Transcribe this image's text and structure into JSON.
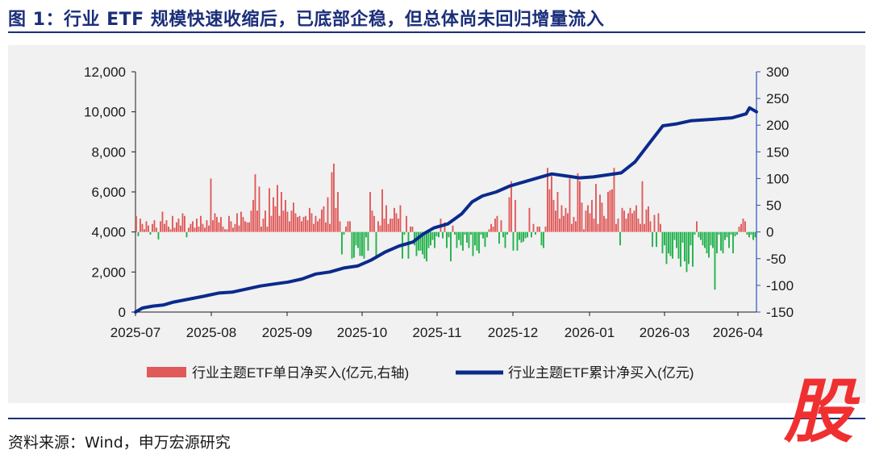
{
  "title": "图 1：行业 ETF 规模快速收缩后，已底部企稳，但总体尚未回归增量流入",
  "source": "资料来源：Wind，申万宏源研究",
  "stamp": "股",
  "colors": {
    "title": "#1b2f7a",
    "bar_pos": "#e05a5a",
    "bar_neg": "#22b24c",
    "line": "#0a2a8c",
    "axis_right": "#2a55b8"
  },
  "chart_data": {
    "type": "bar+line",
    "left_axis": {
      "ticks": [
        "0",
        "2,000",
        "4,000",
        "6,000",
        "8,000",
        "10,000",
        "12,000"
      ],
      "min": 0,
      "max": 12000
    },
    "right_axis": {
      "ticks": [
        "-150",
        "-100",
        "-50",
        "0",
        "50",
        "100",
        "150",
        "200",
        "250",
        "300"
      ],
      "min": -150,
      "max": 300
    },
    "x_labels": [
      "2025-07",
      "2025-08",
      "2025-09",
      "2025-10",
      "2025-11",
      "2025-12",
      "2026-01",
      "2026-03",
      "2026-04"
    ],
    "legend": {
      "bar": "行业主题ETF单日净买入(亿元,右轴)",
      "line": "行业主题ETF累计净买入(亿元)"
    },
    "series": [
      {
        "name": "行业主题ETF单日净买入(亿元,右轴)",
        "axis": "right",
        "values": [
          30,
          -8,
          25,
          15,
          5,
          20,
          12,
          -5,
          15,
          22,
          8,
          -14,
          20,
          38,
          15,
          22,
          10,
          5,
          30,
          8,
          18,
          25,
          12,
          35,
          30,
          -10,
          8,
          15,
          20,
          8,
          25,
          10,
          30,
          15,
          8,
          22,
          12,
          100,
          22,
          35,
          28,
          18,
          28,
          10,
          5,
          5,
          30,
          20,
          8,
          15,
          35,
          12,
          38,
          28,
          20,
          18,
          18,
          40,
          60,
          108,
          40,
          85,
          10,
          25,
          40,
          10,
          82,
          30,
          65,
          48,
          88,
          30,
          75,
          40,
          60,
          38,
          20,
          40,
          55,
          35,
          28,
          30,
          20,
          28,
          30,
          22,
          45,
          35,
          15,
          30,
          20,
          25,
          42,
          48,
          18,
          65,
          15,
          112,
          128,
          45,
          75,
          20,
          -42,
          -5,
          10,
          20,
          20,
          -50,
          -48,
          -25,
          -30,
          -45,
          -45,
          -50,
          -10,
          -35,
          75,
          40,
          30,
          -50,
          20,
          12,
          80,
          25,
          50,
          15,
          25,
          25,
          45,
          35,
          25,
          50,
          -50,
          -5,
          30,
          -50,
          10,
          10,
          -25,
          -45,
          -35,
          -35,
          -42,
          -50,
          -55,
          -30,
          -25,
          -15,
          -30,
          -8,
          -10,
          25,
          -12,
          18,
          -30,
          -10,
          -55,
          12,
          -5,
          -30,
          -15,
          -25,
          -35,
          -5,
          -20,
          -30,
          -5,
          -45,
          -25,
          -35,
          -40,
          -5,
          -12,
          -28,
          -10,
          5,
          15,
          10,
          25,
          30,
          -22,
          22,
          -10,
          -30,
          -5,
          65,
          95,
          -35,
          60,
          -35,
          -15,
          -20,
          -18,
          -12,
          -10,
          45,
          -10,
          15,
          -5,
          10,
          10,
          -25,
          -30,
          10,
          120,
          80,
          105,
          60,
          40,
          75,
          25,
          50,
          30,
          45,
          35,
          100,
          15,
          28,
          20,
          110,
          95,
          55,
          5,
          40,
          50,
          35,
          60,
          25,
          90,
          15,
          70,
          55,
          30,
          25,
          75,
          78,
          80,
          120,
          15,
          25,
          -25,
          45,
          40,
          25,
          35,
          45,
          35,
          40,
          50,
          25,
          15,
          95,
          15,
          42,
          48,
          20,
          -28,
          32,
          -28,
          35,
          15,
          -40,
          -25,
          -60,
          -40,
          -45,
          -50,
          -15,
          -30,
          -50,
          -65,
          -20,
          -55,
          -75,
          -60,
          -25,
          -65,
          -5,
          20,
          -10,
          -15,
          -25,
          -30,
          -40,
          -48,
          -25,
          -30,
          -108,
          -40,
          -5,
          -35,
          -40,
          -15,
          -10,
          -30,
          -5,
          -40,
          -8,
          -5,
          10,
          15,
          25,
          20,
          -5,
          -10,
          -5,
          -15,
          -10
        ]
      },
      {
        "name": "行业主题ETF累计净买入(亿元)",
        "axis": "left",
        "x": [
          0,
          0.1,
          0.25,
          0.4,
          0.55,
          0.7,
          0.85,
          1,
          1.2,
          1.4,
          1.6,
          1.8,
          2.0,
          2.2,
          2.4,
          2.6,
          2.8,
          3.0,
          3.2,
          3.4,
          3.6,
          3.8,
          4.0,
          4.15,
          4.3,
          4.5,
          4.7,
          4.85,
          5.0,
          5.2,
          5.4,
          5.6,
          5.8,
          6.0,
          6.2,
          6.4,
          6.6,
          6.8,
          7.0,
          7.2,
          7.4,
          7.6,
          7.8,
          8.0,
          8.2,
          8.4,
          8.6,
          8.8,
          8.85,
          8.95
        ],
        "values": [
          0,
          200,
          300,
          350,
          500,
          600,
          700,
          800,
          950,
          1000,
          1150,
          1300,
          1400,
          1500,
          1650,
          1900,
          2000,
          2200,
          2300,
          2600,
          3000,
          3300,
          3500,
          3900,
          4200,
          4400,
          4900,
          5500,
          5800,
          6000,
          6300,
          6500,
          6700,
          6900,
          6800,
          6700,
          6750,
          6850,
          6950,
          7500,
          8400,
          9300,
          9400,
          9550,
          9600,
          9650,
          9700,
          9900,
          10200,
          10000
        ]
      }
    ]
  }
}
